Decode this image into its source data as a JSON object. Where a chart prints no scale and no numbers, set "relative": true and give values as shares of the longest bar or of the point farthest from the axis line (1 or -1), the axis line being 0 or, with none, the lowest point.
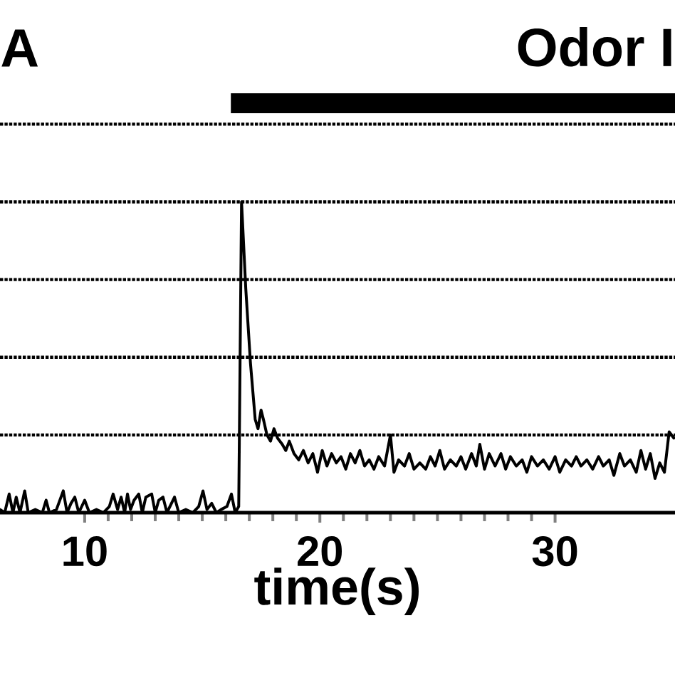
{
  "chart_data": {
    "type": "line",
    "relative": true,
    "xlabel": "time(s)",
    "annotations": [
      "A",
      "Odor I"
    ],
    "xlim": [
      6.4,
      35.1
    ],
    "xticks": [
      10,
      20,
      30
    ],
    "line_style": "solid",
    "ref_lines": [
      {
        "axis": "y",
        "value": 0.25,
        "line_style": "dotted"
      },
      {
        "axis": "y",
        "value": 0.5,
        "line_style": "dotted"
      },
      {
        "axis": "y",
        "value": 0.75,
        "line_style": "dotted"
      },
      {
        "axis": "y",
        "value": 1.0,
        "line_style": "dotted"
      },
      {
        "axis": "y",
        "value": 1.25,
        "line_style": "dotted"
      }
    ],
    "series": [
      {
        "color": "#000000",
        "x": [
          6.4,
          6.6,
          6.79,
          6.95,
          7.09,
          7.25,
          7.45,
          7.6,
          7.9,
          8.2,
          8.36,
          8.5,
          8.8,
          9.09,
          9.25,
          9.42,
          9.58,
          9.75,
          10.0,
          10.2,
          10.5,
          10.8,
          11.05,
          11.21,
          11.4,
          11.55,
          11.7,
          11.82,
          11.95,
          12.1,
          12.3,
          12.45,
          12.6,
          12.85,
          13.0,
          13.15,
          13.33,
          13.5,
          13.82,
          14.0,
          14.3,
          14.6,
          14.85,
          15.03,
          15.2,
          15.4,
          15.6,
          15.8,
          16.05,
          16.24,
          16.4,
          16.55,
          16.67,
          16.85,
          17.05,
          17.25,
          17.37,
          17.5,
          17.6,
          17.75,
          17.9,
          18.05,
          18.2,
          18.4,
          18.55,
          18.7,
          18.9,
          19.1,
          19.3,
          19.5,
          19.7,
          19.9,
          20.1,
          20.3,
          20.5,
          20.7,
          20.9,
          21.1,
          21.3,
          21.5,
          21.7,
          21.9,
          22.1,
          22.3,
          22.5,
          22.75,
          23.0,
          23.15,
          23.35,
          23.6,
          23.8,
          24.0,
          24.25,
          24.5,
          24.7,
          24.9,
          25.1,
          25.3,
          25.55,
          25.8,
          26.0,
          26.2,
          26.45,
          26.65,
          26.8,
          27.0,
          27.2,
          27.45,
          27.7,
          27.9,
          28.1,
          28.35,
          28.6,
          28.8,
          29.0,
          29.25,
          29.5,
          29.75,
          30.0,
          30.2,
          30.45,
          30.7,
          30.9,
          31.1,
          31.35,
          31.6,
          31.85,
          32.05,
          32.3,
          32.5,
          32.75,
          32.95,
          33.2,
          33.45,
          33.65,
          33.85,
          34.05,
          34.25,
          34.45,
          34.65,
          34.85,
          35.05
        ],
        "values": [
          0.01,
          0.0,
          0.06,
          0.0,
          0.05,
          0.0,
          0.07,
          0.0,
          0.01,
          0.0,
          0.04,
          0.0,
          0.01,
          0.07,
          0.0,
          0.03,
          0.05,
          0.0,
          0.04,
          0.0,
          0.01,
          0.0,
          0.02,
          0.06,
          0.01,
          0.05,
          0.0,
          0.06,
          0.01,
          0.04,
          0.06,
          0.0,
          0.05,
          0.06,
          0.0,
          0.04,
          0.05,
          0.0,
          0.05,
          0.0,
          0.01,
          0.0,
          0.02,
          0.07,
          0.01,
          0.03,
          0.0,
          0.01,
          0.02,
          0.06,
          0.0,
          0.02,
          1.0,
          0.72,
          0.48,
          0.3,
          0.27,
          0.33,
          0.3,
          0.25,
          0.23,
          0.27,
          0.24,
          0.22,
          0.2,
          0.23,
          0.19,
          0.17,
          0.2,
          0.16,
          0.19,
          0.13,
          0.2,
          0.15,
          0.19,
          0.16,
          0.18,
          0.14,
          0.19,
          0.16,
          0.2,
          0.15,
          0.17,
          0.14,
          0.18,
          0.15,
          0.25,
          0.13,
          0.17,
          0.15,
          0.19,
          0.14,
          0.16,
          0.14,
          0.18,
          0.15,
          0.2,
          0.14,
          0.17,
          0.15,
          0.18,
          0.14,
          0.19,
          0.15,
          0.22,
          0.14,
          0.19,
          0.15,
          0.19,
          0.14,
          0.18,
          0.15,
          0.17,
          0.13,
          0.18,
          0.15,
          0.17,
          0.14,
          0.18,
          0.13,
          0.17,
          0.15,
          0.18,
          0.15,
          0.17,
          0.14,
          0.18,
          0.15,
          0.17,
          0.12,
          0.19,
          0.15,
          0.17,
          0.13,
          0.2,
          0.14,
          0.19,
          0.11,
          0.16,
          0.13,
          0.26,
          0.24
        ]
      }
    ]
  }
}
